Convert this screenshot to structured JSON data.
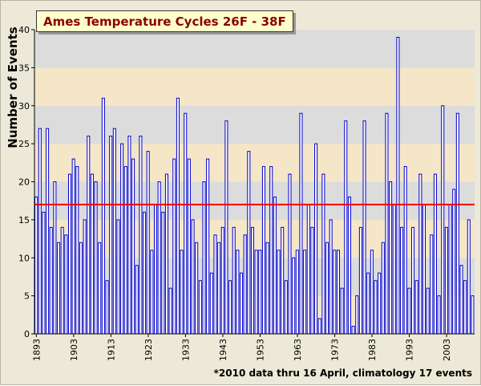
{
  "chart_data": {
    "type": "bar",
    "title": "Ames Temperature Cycles 26F - 38F",
    "ylabel": "Number of Events",
    "xlabel": "",
    "footnote": "*2010 data thru 16 April, climatology 17 events",
    "x_start": 1893,
    "x_end": 2010,
    "ylim": [
      0,
      40
    ],
    "y_ticks": [
      0,
      5,
      10,
      15,
      20,
      25,
      30,
      35,
      40
    ],
    "x_tick_labels": [
      "1893",
      "1903",
      "1913",
      "1923",
      "1933",
      "1943",
      "1953",
      "1963",
      "1973",
      "1983",
      "1993",
      "2003"
    ],
    "grid": true,
    "band_colors": [
      "#f5e6c8",
      "#dcdcdc"
    ],
    "bar_color": "#0000cc",
    "line_color": "#ff0000",
    "climatology": 17,
    "years": [
      1893,
      1894,
      1895,
      1896,
      1897,
      1898,
      1899,
      1900,
      1901,
      1902,
      1903,
      1904,
      1905,
      1906,
      1907,
      1908,
      1909,
      1910,
      1911,
      1912,
      1913,
      1914,
      1915,
      1916,
      1917,
      1918,
      1919,
      1920,
      1921,
      1922,
      1923,
      1924,
      1925,
      1926,
      1927,
      1928,
      1929,
      1930,
      1931,
      1932,
      1933,
      1934,
      1935,
      1936,
      1937,
      1938,
      1939,
      1940,
      1941,
      1942,
      1943,
      1944,
      1945,
      1946,
      1947,
      1948,
      1949,
      1950,
      1951,
      1952,
      1953,
      1954,
      1955,
      1956,
      1957,
      1958,
      1959,
      1960,
      1961,
      1962,
      1963,
      1964,
      1965,
      1966,
      1967,
      1968,
      1969,
      1970,
      1971,
      1972,
      1973,
      1974,
      1975,
      1976,
      1977,
      1978,
      1979,
      1980,
      1981,
      1982,
      1983,
      1984,
      1985,
      1986,
      1987,
      1988,
      1989,
      1990,
      1991,
      1992,
      1993,
      1994,
      1995,
      1996,
      1997,
      1998,
      1999,
      2000,
      2001,
      2002,
      2003,
      2004,
      2005,
      2006,
      2007,
      2008,
      2009,
      2010
    ],
    "values": [
      18,
      27,
      16,
      27,
      14,
      20,
      12,
      14,
      13,
      21,
      23,
      22,
      12,
      15,
      26,
      21,
      20,
      12,
      31,
      7,
      26,
      27,
      15,
      25,
      22,
      26,
      23,
      9,
      26,
      16,
      24,
      11,
      17,
      20,
      16,
      21,
      6,
      23,
      31,
      11,
      29,
      23,
      15,
      12,
      7,
      20,
      23,
      8,
      13,
      12,
      14,
      28,
      7,
      14,
      11,
      8,
      13,
      24,
      14,
      11,
      11,
      22,
      12,
      22,
      18,
      11,
      14,
      7,
      21,
      10,
      11,
      29,
      11,
      17,
      14,
      25,
      2,
      21,
      12,
      15,
      11,
      11,
      6,
      28,
      18,
      1,
      5,
      14,
      28,
      8,
      11,
      7,
      8,
      12,
      29,
      20,
      17,
      39,
      14,
      22,
      6,
      14,
      7,
      21,
      17,
      6,
      13,
      21,
      5,
      30,
      14,
      17,
      19,
      29,
      9,
      7,
      15,
      5
    ]
  }
}
